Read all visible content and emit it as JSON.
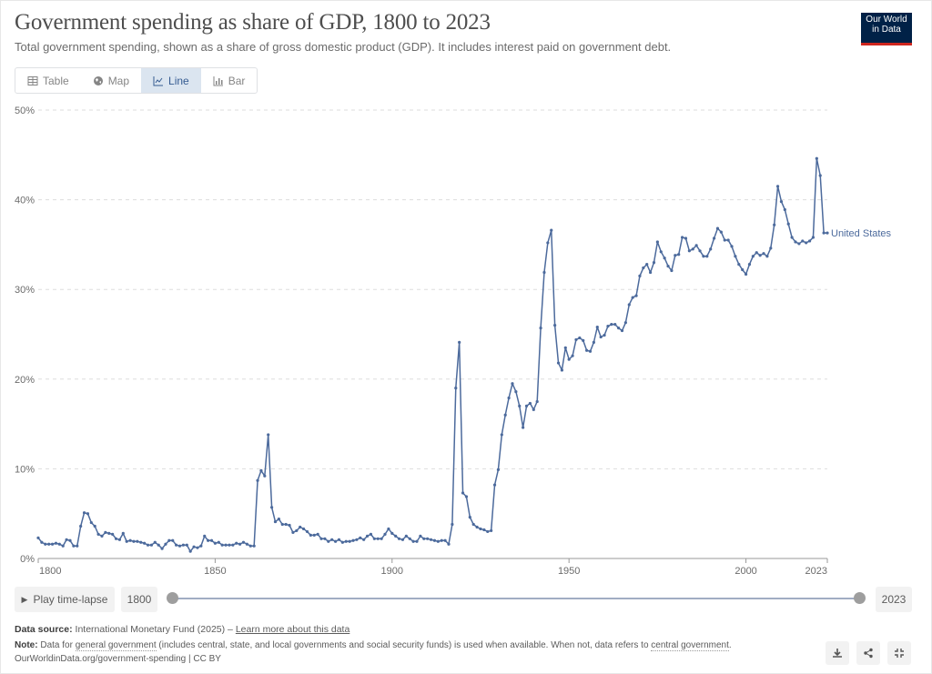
{
  "header": {
    "title": "Government spending as share of GDP, 1800 to 2023",
    "subtitle": "Total government spending, shown as a share of gross domestic product (GDP). It includes interest paid on government debt.",
    "logo_text": [
      "Our World",
      "in Data"
    ]
  },
  "tabs": [
    {
      "label": "Table",
      "icon": "table-icon"
    },
    {
      "label": "Map",
      "icon": "globe-icon"
    },
    {
      "label": "Line",
      "icon": "line-chart-icon",
      "active": true
    },
    {
      "label": "Bar",
      "icon": "bar-chart-icon"
    }
  ],
  "colors": {
    "series": "#4c6a9c",
    "grid": "#dddddd",
    "accent": "#dbe5f0"
  },
  "chart_data": {
    "type": "line",
    "title": "Government spending as share of GDP, 1800 to 2023",
    "ylim": [
      0,
      50
    ],
    "xlim": [
      1800,
      2023
    ],
    "grid": true,
    "y_ticks": [
      0,
      10,
      20,
      30,
      40,
      50
    ],
    "y_tick_labels": [
      "0%",
      "10%",
      "20%",
      "30%",
      "40%",
      "50%"
    ],
    "x_ticks": [
      1800,
      1850,
      1900,
      1950,
      2000,
      2023
    ],
    "x_tick_labels": [
      "1800",
      "1850",
      "1900",
      "1950",
      "2000",
      "2023"
    ],
    "series": [
      {
        "name": "United States",
        "start_year": 1800,
        "values": [
          2.3,
          1.8,
          1.6,
          1.6,
          1.6,
          1.7,
          1.6,
          1.4,
          2.1,
          2.0,
          1.4,
          1.4,
          3.6,
          5.1,
          5.0,
          4.0,
          3.6,
          2.7,
          2.5,
          2.9,
          2.8,
          2.7,
          2.2,
          2.1,
          2.8,
          1.9,
          2.0,
          1.9,
          1.9,
          1.8,
          1.7,
          1.5,
          1.5,
          1.8,
          1.5,
          1.1,
          1.6,
          2.0,
          2.0,
          1.5,
          1.4,
          1.5,
          1.5,
          0.8,
          1.3,
          1.2,
          1.4,
          2.5,
          2.0,
          2.0,
          1.7,
          1.8,
          1.5,
          1.5,
          1.5,
          1.5,
          1.7,
          1.6,
          1.8,
          1.6,
          1.4,
          1.4,
          8.7,
          9.8,
          9.2,
          13.8,
          5.7,
          4.1,
          4.4,
          3.8,
          3.8,
          3.7,
          2.9,
          3.1,
          3.5,
          3.3,
          3.0,
          2.6,
          2.6,
          2.7,
          2.2,
          2.2,
          1.9,
          2.1,
          1.9,
          2.1,
          1.8,
          1.9,
          1.9,
          2.0,
          2.1,
          2.3,
          2.1,
          2.5,
          2.7,
          2.2,
          2.2,
          2.2,
          2.7,
          3.3,
          2.8,
          2.5,
          2.2,
          2.1,
          2.5,
          2.2,
          1.9,
          1.9,
          2.5,
          2.2,
          2.2,
          2.1,
          2.0,
          1.9,
          2.0,
          2.0,
          1.6,
          3.8,
          19.0,
          24.1,
          7.3,
          6.9,
          4.6,
          3.8,
          3.5,
          3.3,
          3.2,
          3.0,
          3.1,
          8.2,
          9.9,
          13.8,
          16.0,
          17.9,
          19.5,
          18.6,
          17.0,
          14.6,
          17.0,
          17.3,
          16.6,
          17.5,
          25.7,
          31.9,
          35.2,
          36.6,
          26.0,
          21.8,
          21.0,
          23.5,
          22.2,
          22.6,
          24.4,
          24.6,
          24.3,
          23.2,
          23.1,
          24.1,
          25.8,
          24.7,
          24.9,
          25.9,
          26.1,
          26.1,
          25.7,
          25.4,
          26.3,
          28.3,
          29.1,
          29.3,
          31.5,
          32.4,
          32.8,
          31.9,
          33.0,
          35.3,
          34.2,
          33.5,
          32.6,
          32.1,
          33.8,
          33.9,
          35.8,
          35.7,
          34.3,
          34.5,
          34.9,
          34.3,
          33.7,
          33.7,
          34.5,
          35.7,
          36.8,
          36.4,
          35.5,
          35.5,
          34.8,
          33.7,
          32.8,
          32.2,
          31.7,
          32.8,
          33.7,
          34.1,
          33.8,
          34.0,
          33.7,
          34.6,
          37.2,
          41.5,
          39.8,
          38.9,
          37.3,
          35.8,
          35.3,
          35.1,
          35.4,
          35.2,
          35.4,
          35.8,
          44.6,
          42.7,
          36.3,
          36.3
        ]
      }
    ]
  },
  "timeline": {
    "play_label": "Play time-lapse",
    "start": "1800",
    "end": "2023"
  },
  "footer": {
    "source_label": "Data source:",
    "source_text": "International Monetary Fund (2025) – ",
    "source_link": "Learn more about this data",
    "note_label": "Note:",
    "note_1": "Data for ",
    "note_link_1": "general government",
    "note_2": " (includes central, state, and local governments and social security funds) is used when available. When not, data refers to ",
    "note_link_2": "central government",
    "note_3": ".",
    "url": "OurWorldinData.org/government-spending | CC BY"
  }
}
